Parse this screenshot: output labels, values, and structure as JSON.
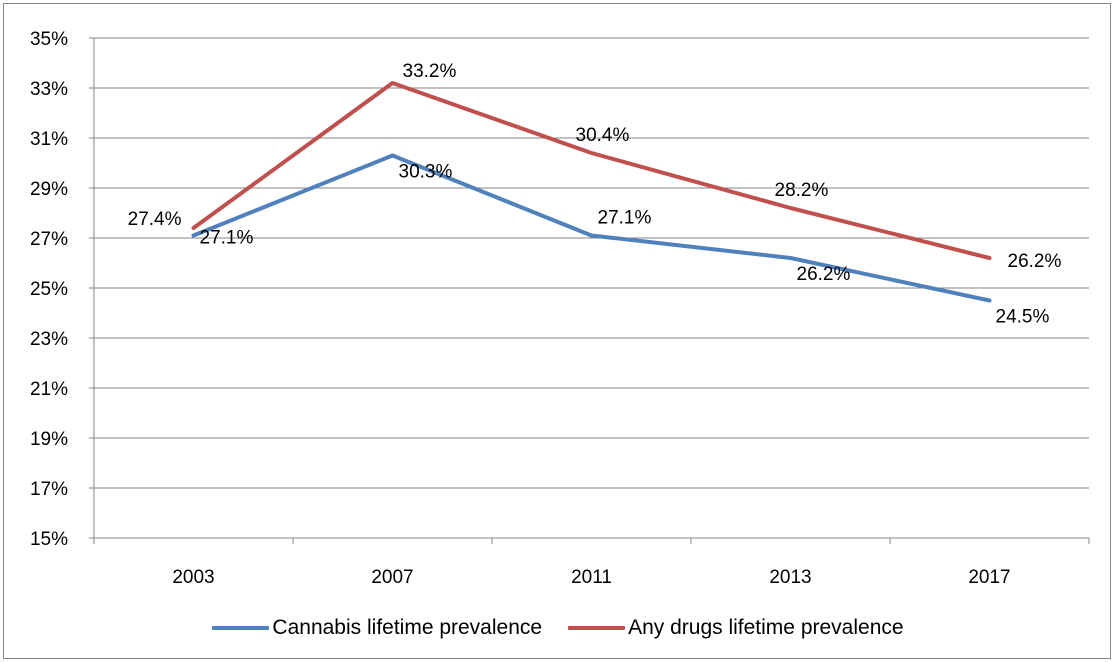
{
  "chart_data": {
    "type": "line",
    "categories": [
      "2003",
      "2007",
      "2011",
      "2013",
      "2017"
    ],
    "series": [
      {
        "name": "Cannabis lifetime prevalence",
        "values": [
          27.1,
          30.3,
          27.1,
          26.2,
          24.5
        ],
        "labels": [
          "27.1%",
          "30.3%",
          "27.1%",
          "26.2%",
          "24.5%"
        ],
        "color": "#4F81BD"
      },
      {
        "name": "Any drugs lifetime prevalence",
        "values": [
          27.4,
          33.2,
          30.4,
          28.2,
          26.2
        ],
        "labels": [
          "27.4%",
          "33.2%",
          "30.4%",
          "28.2%",
          "26.2%"
        ],
        "color": "#C0504D"
      }
    ],
    "y_ticks": [
      "15%",
      "17%",
      "19%",
      "21%",
      "23%",
      "25%",
      "27%",
      "29%",
      "31%",
      "33%",
      "35%"
    ],
    "ylim": [
      15,
      35
    ],
    "grid": true,
    "legend_position": "bottom"
  }
}
